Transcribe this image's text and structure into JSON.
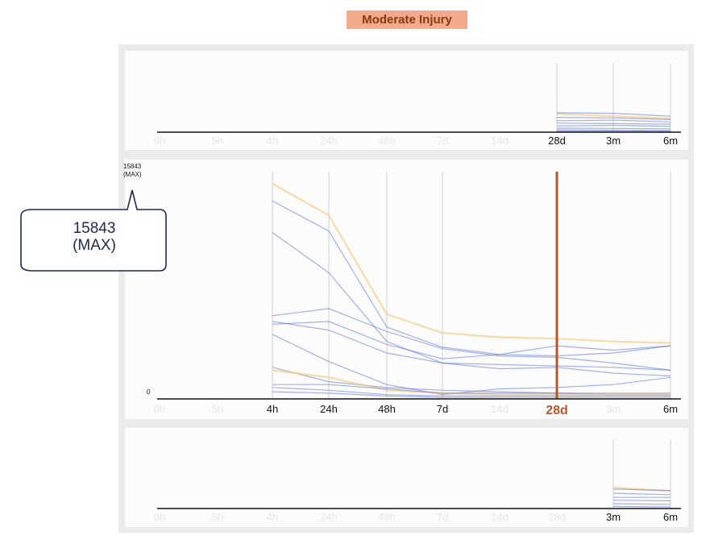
{
  "title": "Moderate Injury",
  "callout": {
    "value": "15843",
    "suffix": "(MAX)"
  },
  "colors": {
    "title_bg": "#f2a98c",
    "title_text": "#8a3a12",
    "blue_line": "#5a6fd0",
    "orange_line": "#f5c87a",
    "highlight": "#b6562c"
  },
  "chart_data": [
    {
      "type": "line",
      "x": [
        "0h",
        ".5h",
        "4h",
        "24h",
        "48h",
        "7d",
        "14d",
        "28d",
        "3m",
        "6m"
      ],
      "active_ticks": [
        "28d",
        "3m",
        "6m"
      ],
      "series": [
        {
          "color": "orange",
          "values": [
            null,
            null,
            null,
            null,
            null,
            null,
            null,
            1600,
            1400,
            1200
          ]
        },
        {
          "color": "blue",
          "values": [
            null,
            null,
            null,
            null,
            null,
            null,
            null,
            1700,
            1650,
            1400
          ]
        },
        {
          "color": "blue",
          "values": [
            null,
            null,
            null,
            null,
            null,
            null,
            null,
            1300,
            1250,
            1100
          ]
        },
        {
          "color": "blue",
          "values": [
            null,
            null,
            null,
            null,
            null,
            null,
            null,
            1000,
            1050,
            900
          ]
        },
        {
          "color": "blue",
          "values": [
            null,
            null,
            null,
            null,
            null,
            null,
            null,
            800,
            750,
            700
          ]
        },
        {
          "color": "blue",
          "values": [
            null,
            null,
            null,
            null,
            null,
            null,
            null,
            550,
            600,
            500
          ]
        },
        {
          "color": "blue",
          "values": [
            null,
            null,
            null,
            null,
            null,
            null,
            null,
            350,
            330,
            300
          ]
        },
        {
          "color": "blue",
          "values": [
            null,
            null,
            null,
            null,
            null,
            null,
            null,
            200,
            180,
            150
          ]
        },
        {
          "color": "blue",
          "values": [
            null,
            null,
            null,
            null,
            null,
            null,
            null,
            100,
            100,
            80
          ]
        }
      ],
      "ylim": [
        0,
        6000
      ]
    },
    {
      "type": "line",
      "x": [
        "0h",
        ".5h",
        "4h",
        "24h",
        "48h",
        "7d",
        "14d",
        "28d",
        "3m",
        "6m"
      ],
      "active_ticks": [
        "4h",
        "24h",
        "48h",
        "7d",
        "6m"
      ],
      "highlight_tick": "28d",
      "y_max_label": "15843",
      "y_max_suffix": "(MAX)",
      "y_min_label": "0",
      "ylim": [
        0,
        15843
      ],
      "series": [
        {
          "color": "orange",
          "values": [
            null,
            null,
            15000,
            12800,
            5900,
            4600,
            4300,
            4200,
            4000,
            3900
          ]
        },
        {
          "color": "blue",
          "values": [
            null,
            null,
            13800,
            11700,
            5000,
            3600,
            3100,
            3000,
            3200,
            3700
          ]
        },
        {
          "color": "blue",
          "values": [
            null,
            null,
            11600,
            8800,
            4000,
            2500,
            2400,
            2300,
            2200,
            2000
          ]
        },
        {
          "color": "blue",
          "values": [
            null,
            null,
            5800,
            6300,
            4700,
            3500,
            3000,
            2900,
            2500,
            2000
          ]
        },
        {
          "color": "blue",
          "values": [
            null,
            null,
            5400,
            4800,
            3200,
            2500,
            2100,
            2200,
            1800,
            1600
          ]
        },
        {
          "color": "blue",
          "values": [
            null,
            null,
            5200,
            5400,
            3800,
            2800,
            3100,
            3700,
            3400,
            3700
          ]
        },
        {
          "color": "blue",
          "values": [
            null,
            null,
            4500,
            2600,
            1000,
            300,
            700,
            800,
            1000,
            1500
          ]
        },
        {
          "color": "blue",
          "values": [
            null,
            null,
            2200,
            1200,
            800,
            600,
            500,
            400,
            300,
            300
          ]
        },
        {
          "color": "orange",
          "values": [
            null,
            null,
            2000,
            1500,
            600,
            400,
            300,
            300,
            300,
            300
          ]
        },
        {
          "color": "blue",
          "values": [
            null,
            null,
            1000,
            1000,
            700,
            400,
            400,
            400,
            400,
            400
          ]
        },
        {
          "color": "blue",
          "values": [
            null,
            null,
            800,
            600,
            300,
            200,
            200,
            200,
            200,
            200
          ]
        },
        {
          "color": "blue",
          "values": [
            null,
            null,
            500,
            400,
            200,
            100,
            100,
            100,
            100,
            100
          ]
        }
      ]
    },
    {
      "type": "line",
      "x": [
        "0h",
        ".5h",
        "4h",
        "24h",
        "48h",
        "7d",
        "14d",
        "28d",
        "3m",
        "6m"
      ],
      "active_ticks": [
        "3m",
        "6m"
      ],
      "ylim": [
        0,
        5000
      ],
      "series": [
        {
          "color": "orange",
          "values": [
            null,
            null,
            null,
            null,
            null,
            null,
            null,
            null,
            1500,
            1250
          ]
        },
        {
          "color": "blue",
          "values": [
            null,
            null,
            null,
            null,
            null,
            null,
            null,
            null,
            1400,
            1300
          ]
        },
        {
          "color": "blue",
          "values": [
            null,
            null,
            null,
            null,
            null,
            null,
            null,
            null,
            1100,
            1000
          ]
        },
        {
          "color": "blue",
          "values": [
            null,
            null,
            null,
            null,
            null,
            null,
            null,
            null,
            800,
            800
          ]
        },
        {
          "color": "blue",
          "values": [
            null,
            null,
            null,
            null,
            null,
            null,
            null,
            null,
            600,
            550
          ]
        },
        {
          "color": "blue",
          "values": [
            null,
            null,
            null,
            null,
            null,
            null,
            null,
            null,
            350,
            300
          ]
        },
        {
          "color": "blue",
          "values": [
            null,
            null,
            null,
            null,
            null,
            null,
            null,
            null,
            150,
            120
          ]
        }
      ]
    }
  ]
}
